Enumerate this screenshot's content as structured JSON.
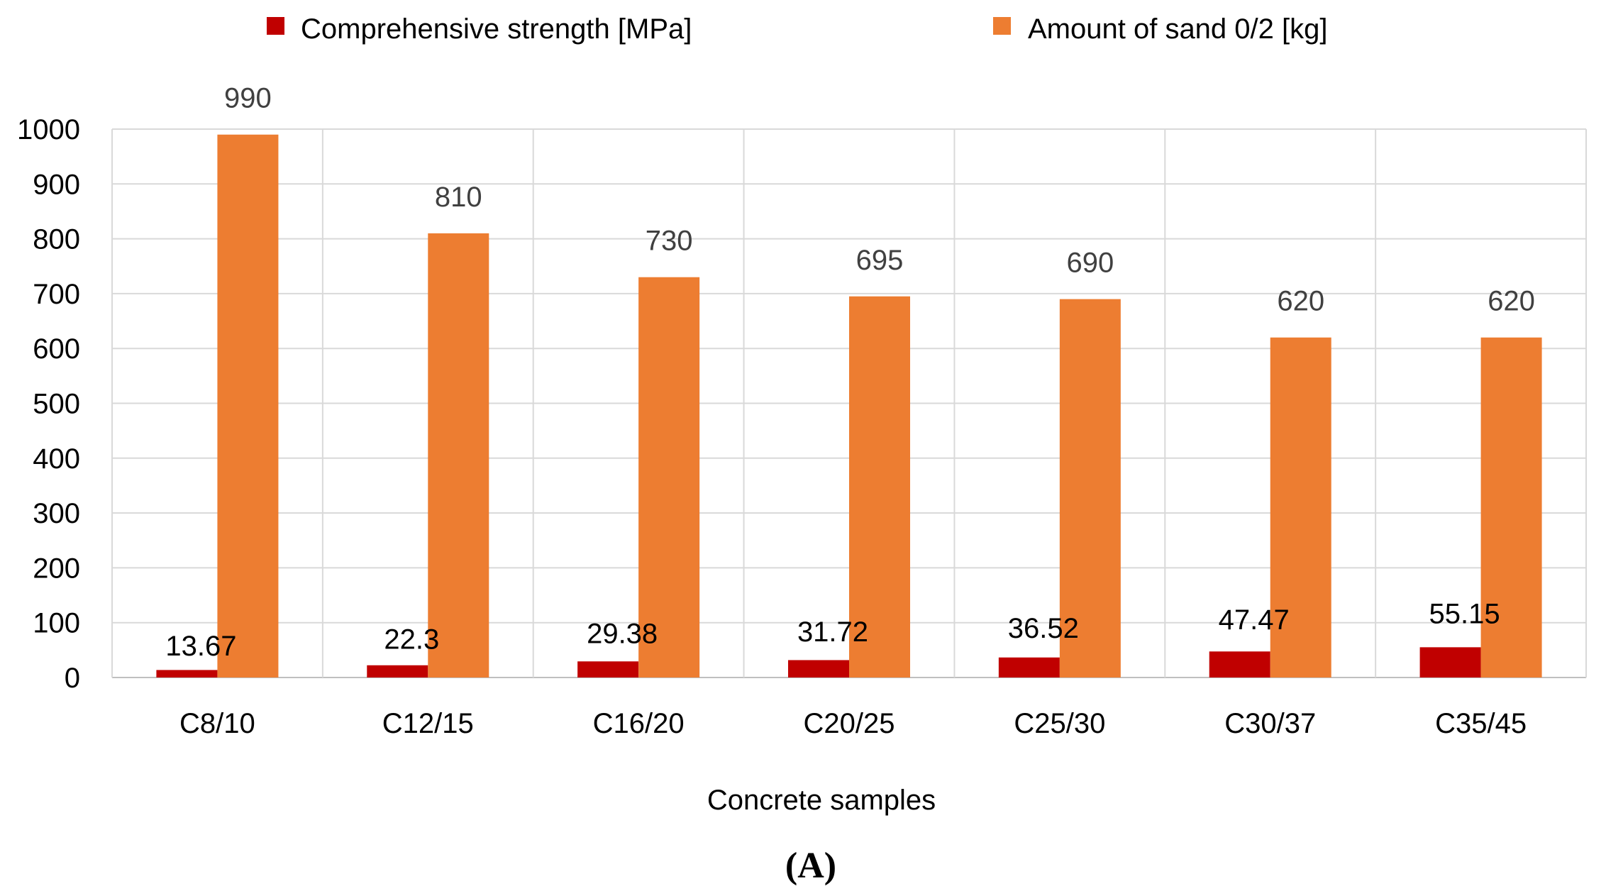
{
  "chart_data": {
    "type": "bar",
    "title": "",
    "xlabel": "Concrete samples",
    "ylabel": "",
    "ylim": [
      0,
      1000
    ],
    "yticks": [
      0,
      100,
      200,
      300,
      400,
      500,
      600,
      700,
      800,
      900,
      1000
    ],
    "grid": true,
    "legend_position": "top",
    "categories": [
      "C8/10",
      "C12/15",
      "C16/20",
      "C20/25",
      "C25/30",
      "C30/37",
      "C35/45"
    ],
    "series": [
      {
        "name": "Comprehensive strength [MPa]",
        "color": "#c00000",
        "label_color": "#000000",
        "values": [
          13.67,
          22.3,
          29.38,
          31.72,
          36.52,
          47.47,
          55.15
        ],
        "labels": [
          "13.67",
          "22.3",
          "29.38",
          "31.72",
          "36.52",
          "47.47",
          "55.15"
        ]
      },
      {
        "name": "Amount of sand 0/2 [kg]",
        "color": "#ed7d31",
        "label_color": "#404040",
        "values": [
          990,
          810,
          730,
          695,
          690,
          620,
          620
        ],
        "labels": [
          "990",
          "810",
          "730",
          "695",
          "690",
          "620",
          "620"
        ]
      }
    ],
    "panel_label": "(A)"
  }
}
